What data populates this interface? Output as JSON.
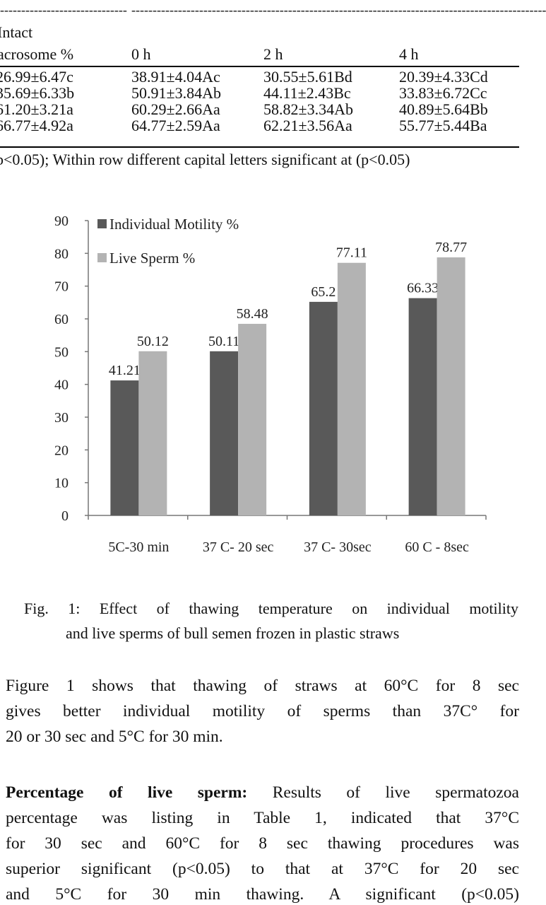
{
  "table": {
    "header_row1": [
      "Intact"
    ],
    "header_row2": [
      "acrosome %",
      "0 h",
      "2 h",
      "4 h"
    ],
    "rows": [
      [
        "26.99±6.47c",
        "38.91±4.04Ac",
        "30.55±5.61Bd",
        "20.39±4.33Cd"
      ],
      [
        "35.69±6.33b",
        "50.91±3.84Ab",
        "44.11±2.43Bc",
        "33.83±6.72Cc"
      ],
      [
        "61.20±3.21a",
        "60.29±2.66Aa",
        "58.82±3.34Ab",
        "40.89±5.64Bb"
      ],
      [
        "66.77±4.92a",
        "64.77±2.59Aa",
        "62.21±3.56Aa",
        "55.77±5.44Ba"
      ]
    ],
    "footnote": "p<0.05); Within row different capital letters significant at (p<0.05)"
  },
  "chart_data": {
    "type": "bar",
    "categories": [
      "5C-30 min",
      "37 C- 20 sec",
      "37 C- 30sec",
      "60 C - 8sec"
    ],
    "series": [
      {
        "name": "Individual Motility %",
        "values": [
          41.21,
          50.11,
          65.2,
          66.33
        ],
        "color": "#595959",
        "labels": [
          "41.21",
          "50.11",
          "65.2",
          "66.33"
        ]
      },
      {
        "name": "Live Sperm %",
        "values": [
          50.12,
          58.48,
          77.11,
          78.77
        ],
        "color": "#b3b3b3",
        "labels": [
          "50.12",
          "58.48",
          "77.11",
          "78.77"
        ]
      }
    ],
    "ylim": [
      0,
      90
    ],
    "yticks": [
      "0",
      "10",
      "20",
      "30",
      "40",
      "50",
      "60",
      "70",
      "80",
      "90"
    ],
    "legend": "top-left",
    "grid": false
  },
  "caption": {
    "line1": "Fig. 1: Effect of thawing temperature on individual motility",
    "line2": "and live sperms of bull semen frozen in plastic straws"
  },
  "paragraph1": [
    "Figure 1 shows that thawing of straws at 60°C for 8 sec",
    "gives better individual motility of sperms than 37C° for",
    "20 or 30 sec and 5°C for 30 min."
  ],
  "paragraph2": {
    "heading": "Percentage of live sperm:",
    "first_line_rest": " Results of live spermatozoa",
    "lines": [
      "percentage was listing in Table 1, indicated that 37°C",
      "for 30 sec and 60°C for 8 sec thawing procedures was",
      "superior significant (p<0.05) to that at 37°C for 20 sec",
      "and 5°C for 30 min thawing. A significant (p<0.05)"
    ]
  }
}
